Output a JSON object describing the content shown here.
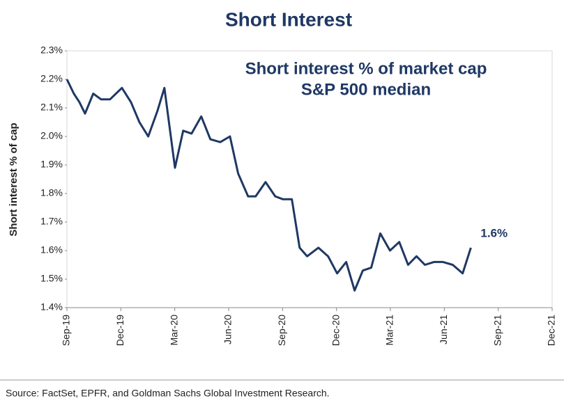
{
  "chart_data": {
    "type": "line",
    "title": "Short Interest",
    "subtitle": [
      "Short interest % of market cap",
      "S&P 500 median"
    ],
    "ylabel": "Short interest % of cap",
    "source": "Source: FactSet, EPFR, and Goldman Sachs Global Investment Research.",
    "x": [
      2019.667,
      2019.699,
      2019.725,
      2019.751,
      2019.789,
      2019.825,
      2019.867,
      2019.922,
      2019.964,
      2020.003,
      2020.044,
      2020.087,
      2020.119,
      2020.168,
      2020.206,
      2020.245,
      2020.29,
      2020.332,
      2020.378,
      2020.423,
      2020.461,
      2020.507,
      2020.542,
      2020.588,
      2020.633,
      2020.668,
      2020.71,
      2020.746,
      2020.781,
      2020.833,
      2020.878,
      2020.92,
      2020.962,
      2021.001,
      2021.039,
      2021.078,
      2021.12,
      2021.165,
      2021.208,
      2021.249,
      2021.288,
      2021.327,
      2021.369,
      2021.411,
      2021.456,
      2021.502,
      2021.54
    ],
    "series": [
      {
        "name": "Short interest % of market cap",
        "color": "#1f3864",
        "values": [
          2.2,
          2.15,
          2.12,
          2.08,
          2.15,
          2.13,
          2.13,
          2.17,
          2.12,
          2.05,
          2.0,
          2.09,
          2.17,
          1.89,
          2.02,
          2.01,
          2.07,
          1.99,
          1.98,
          2.0,
          1.87,
          1.79,
          1.79,
          1.84,
          1.79,
          1.78,
          1.78,
          1.61,
          1.58,
          1.61,
          1.58,
          1.52,
          1.56,
          1.46,
          1.53,
          1.54,
          1.66,
          1.6,
          1.63,
          1.55,
          1.58,
          1.55,
          1.56,
          1.56,
          1.55,
          1.52,
          1.61
        ]
      }
    ],
    "annotations": [
      {
        "text": "1.6%"
      }
    ],
    "xlim": [
      2019.667,
      2021.917
    ],
    "xticks": [
      {
        "value": 2019.667,
        "label": "Sep-19"
      },
      {
        "value": 2019.917,
        "label": "Dec-19"
      },
      {
        "value": 2020.167,
        "label": "Mar-20"
      },
      {
        "value": 2020.417,
        "label": "Jun-20"
      },
      {
        "value": 2020.667,
        "label": "Sep-20"
      },
      {
        "value": 2020.917,
        "label": "Dec-20"
      },
      {
        "value": 2021.167,
        "label": "Mar-21"
      },
      {
        "value": 2021.417,
        "label": "Jun-21"
      },
      {
        "value": 2021.667,
        "label": "Sep-21"
      },
      {
        "value": 2021.917,
        "label": "Dec-21"
      }
    ],
    "ylim": [
      1.4,
      2.3
    ],
    "yticks": [
      {
        "value": 1.4,
        "label": "1.4%"
      },
      {
        "value": 1.5,
        "label": "1.5%"
      },
      {
        "value": 1.6,
        "label": "1.6%"
      },
      {
        "value": 1.7,
        "label": "1.7%"
      },
      {
        "value": 1.8,
        "label": "1.8%"
      },
      {
        "value": 1.9,
        "label": "1.9%"
      },
      {
        "value": 2.0,
        "label": "2.0%"
      },
      {
        "value": 2.1,
        "label": "2.1%"
      },
      {
        "value": 2.2,
        "label": "2.2%"
      },
      {
        "value": 2.3,
        "label": "2.3%"
      }
    ],
    "grid": false
  }
}
